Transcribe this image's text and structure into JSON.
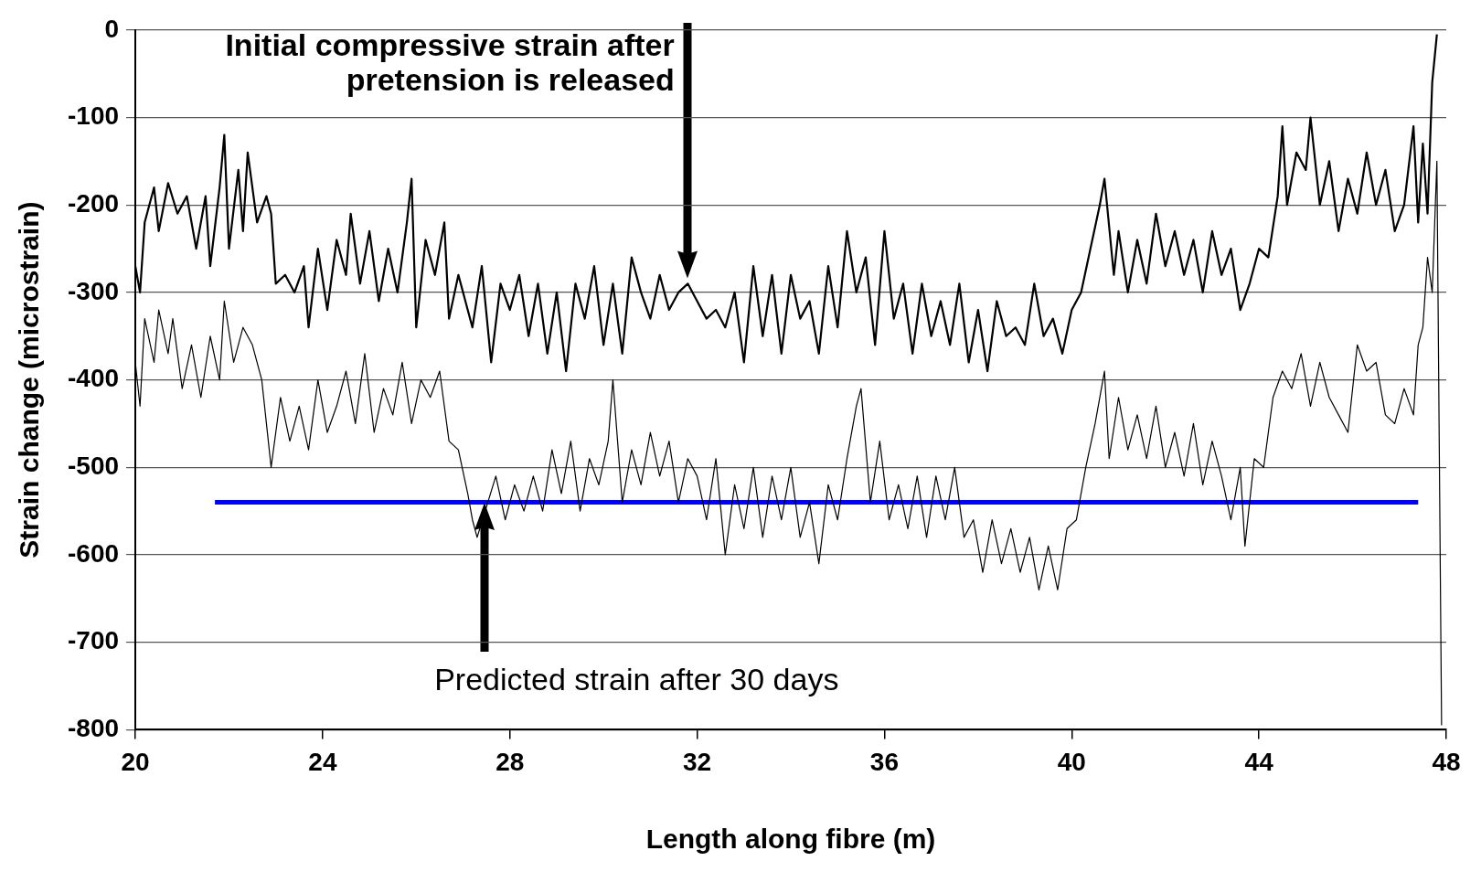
{
  "chart_data": {
    "type": "line",
    "xlabel": "Length along fibre (m)",
    "ylabel": "Strain change (microstrain)",
    "xlim": [
      20,
      48
    ],
    "xticks": [
      20,
      24,
      28,
      32,
      36,
      40,
      44,
      48
    ],
    "ylim": [
      -800,
      0
    ],
    "yticks": [
      0,
      -100,
      -200,
      -300,
      -400,
      -500,
      -600,
      -700,
      -800
    ],
    "grid": "y",
    "legend": false,
    "marker": "none",
    "line_style": "solid",
    "annotations": [
      "Initial compressive strain after pretension is released",
      "Predicted strain after 30 days"
    ],
    "series": [
      {
        "color": "#000000",
        "x": [
          20.0,
          20.1,
          20.2,
          20.4,
          20.5,
          20.7,
          20.9,
          21.1,
          21.3,
          21.5,
          21.6,
          21.8,
          21.9,
          22.0,
          22.2,
          22.3,
          22.4,
          22.6,
          22.8,
          22.9,
          23.0,
          23.2,
          23.4,
          23.6,
          23.7,
          23.9,
          24.1,
          24.3,
          24.5,
          24.6,
          24.8,
          25.0,
          25.2,
          25.4,
          25.6,
          25.8,
          25.9,
          26.0,
          26.2,
          26.4,
          26.6,
          26.7,
          26.9,
          27.0,
          27.2,
          27.4,
          27.6,
          27.8,
          28.0,
          28.2,
          28.4,
          28.6,
          28.8,
          29.0,
          29.2,
          29.4,
          29.6,
          29.8,
          30.0,
          30.2,
          30.4,
          30.6,
          30.8,
          31.0,
          31.2,
          31.4,
          31.6,
          31.8,
          32.0,
          32.2,
          32.4,
          32.6,
          32.8,
          33.0,
          33.2,
          33.4,
          33.6,
          33.8,
          34.0,
          34.2,
          34.4,
          34.6,
          34.8,
          35.0,
          35.2,
          35.4,
          35.6,
          35.8,
          36.0,
          36.2,
          36.4,
          36.6,
          36.8,
          37.0,
          37.2,
          37.4,
          37.6,
          37.8,
          38.0,
          38.2,
          38.4,
          38.6,
          38.8,
          39.0,
          39.2,
          39.4,
          39.6,
          39.8,
          40.0,
          40.2,
          40.4,
          40.6,
          40.7,
          40.9,
          41.0,
          41.2,
          41.4,
          41.6,
          41.8,
          42.0,
          42.2,
          42.4,
          42.6,
          42.8,
          43.0,
          43.2,
          43.4,
          43.6,
          43.8,
          44.0,
          44.2,
          44.4,
          44.5,
          44.6,
          44.8,
          45.0,
          45.1,
          45.3,
          45.5,
          45.7,
          45.9,
          46.1,
          46.3,
          46.5,
          46.7,
          46.9,
          47.1,
          47.3,
          47.4,
          47.5,
          47.6,
          47.7,
          47.8
        ],
        "values": [
          -270,
          -300,
          -220,
          -180,
          -230,
          -175,
          -210,
          -190,
          -250,
          -190,
          -270,
          -180,
          -120,
          -250,
          -160,
          -230,
          -140,
          -220,
          -190,
          -210,
          -290,
          -280,
          -300,
          -270,
          -340,
          -250,
          -320,
          -240,
          -280,
          -210,
          -290,
          -230,
          -310,
          -250,
          -300,
          -220,
          -170,
          -340,
          -240,
          -280,
          -220,
          -330,
          -280,
          -300,
          -340,
          -270,
          -380,
          -290,
          -320,
          -280,
          -350,
          -290,
          -370,
          -300,
          -390,
          -290,
          -330,
          -270,
          -360,
          -290,
          -370,
          -260,
          -300,
          -330,
          -280,
          -320,
          -300,
          -290,
          -310,
          -330,
          -320,
          -340,
          -300,
          -380,
          -270,
          -350,
          -280,
          -370,
          -280,
          -330,
          -310,
          -370,
          -270,
          -340,
          -230,
          -300,
          -260,
          -360,
          -230,
          -330,
          -290,
          -370,
          -290,
          -350,
          -310,
          -360,
          -290,
          -380,
          -320,
          -390,
          -310,
          -350,
          -340,
          -360,
          -290,
          -350,
          -330,
          -370,
          -320,
          -300,
          -250,
          -200,
          -170,
          -280,
          -230,
          -300,
          -240,
          -290,
          -210,
          -270,
          -230,
          -280,
          -240,
          -300,
          -230,
          -280,
          -250,
          -320,
          -290,
          -250,
          -260,
          -190,
          -110,
          -200,
          -140,
          -160,
          -100,
          -200,
          -150,
          -230,
          -170,
          -210,
          -140,
          -200,
          -160,
          -230,
          -200,
          -110,
          -220,
          -130,
          -210,
          -60,
          -5
        ]
      },
      {
        "color": "#000000",
        "x": [
          20.0,
          20.1,
          20.2,
          20.4,
          20.5,
          20.7,
          20.8,
          21.0,
          21.2,
          21.4,
          21.6,
          21.8,
          21.9,
          22.1,
          22.3,
          22.5,
          22.7,
          22.9,
          23.1,
          23.3,
          23.5,
          23.7,
          23.9,
          24.1,
          24.3,
          24.5,
          24.7,
          24.9,
          25.1,
          25.3,
          25.5,
          25.7,
          25.9,
          26.1,
          26.3,
          26.5,
          26.7,
          26.9,
          27.1,
          27.2,
          27.3,
          27.7,
          27.9,
          28.1,
          28.3,
          28.5,
          28.7,
          28.9,
          29.1,
          29.3,
          29.5,
          29.7,
          29.9,
          30.1,
          30.2,
          30.4,
          30.6,
          30.8,
          31.0,
          31.2,
          31.4,
          31.6,
          31.8,
          32.0,
          32.2,
          32.4,
          32.6,
          32.8,
          33.0,
          33.2,
          33.4,
          33.6,
          33.8,
          34.0,
          34.2,
          34.4,
          34.6,
          34.8,
          35.0,
          35.2,
          35.4,
          35.5,
          35.7,
          35.9,
          36.1,
          36.3,
          36.5,
          36.7,
          36.9,
          37.1,
          37.3,
          37.5,
          37.7,
          37.9,
          38.1,
          38.3,
          38.5,
          38.7,
          38.9,
          39.1,
          39.3,
          39.5,
          39.7,
          39.9,
          40.1,
          40.3,
          40.5,
          40.7,
          40.8,
          41.0,
          41.2,
          41.4,
          41.6,
          41.8,
          42.0,
          42.2,
          42.4,
          42.6,
          42.8,
          43.0,
          43.2,
          43.4,
          43.6,
          43.7,
          43.9,
          44.1,
          44.3,
          44.5,
          44.7,
          44.9,
          45.1,
          45.3,
          45.5,
          45.7,
          45.9,
          46.1,
          46.3,
          46.5,
          46.7,
          46.9,
          47.1,
          47.3,
          47.4,
          47.5,
          47.6,
          47.7,
          47.8,
          47.9
        ],
        "values": [
          -380,
          -430,
          -330,
          -380,
          -320,
          -370,
          -330,
          -410,
          -360,
          -420,
          -350,
          -400,
          -310,
          -380,
          -340,
          -360,
          -400,
          -500,
          -420,
          -470,
          -430,
          -480,
          -400,
          -460,
          -430,
          -390,
          -450,
          -370,
          -460,
          -410,
          -440,
          -380,
          -450,
          -400,
          -420,
          -390,
          -470,
          -480,
          -530,
          -560,
          -580,
          -510,
          -560,
          -520,
          -550,
          -510,
          -550,
          -480,
          -530,
          -470,
          -550,
          -490,
          -520,
          -470,
          -400,
          -540,
          -480,
          -520,
          -460,
          -510,
          -470,
          -540,
          -490,
          -510,
          -560,
          -490,
          -600,
          -520,
          -570,
          -500,
          -580,
          -510,
          -560,
          -500,
          -580,
          -540,
          -610,
          -520,
          -560,
          -490,
          -430,
          -410,
          -540,
          -470,
          -560,
          -520,
          -570,
          -510,
          -580,
          -510,
          -560,
          -500,
          -580,
          -560,
          -620,
          -560,
          -610,
          -570,
          -620,
          -580,
          -640,
          -590,
          -640,
          -570,
          -560,
          -500,
          -450,
          -390,
          -490,
          -420,
          -480,
          -440,
          -490,
          -430,
          -500,
          -460,
          -510,
          -450,
          -520,
          -470,
          -510,
          -560,
          -500,
          -590,
          -490,
          -500,
          -420,
          -390,
          -410,
          -370,
          -430,
          -380,
          -420,
          -440,
          -460,
          -360,
          -390,
          -380,
          -440,
          -450,
          -410,
          -440,
          -360,
          -340,
          -260,
          -300,
          -150,
          -795
        ]
      },
      {
        "color": "#0000ff",
        "x": [
          21.7,
          47.4
        ],
        "values": [
          -540,
          -540
        ]
      }
    ]
  }
}
